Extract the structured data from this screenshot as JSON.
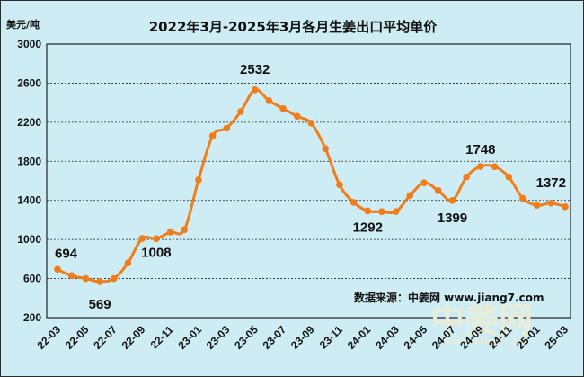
{
  "chart_data": {
    "type": "line",
    "title": "2022年3月-2025年3月各月生姜出口平均单价",
    "ylabel": "美元/吨",
    "ylim": [
      200,
      3000
    ],
    "yticks": [
      200,
      600,
      1000,
      1400,
      1800,
      2200,
      2600,
      3000
    ],
    "x": [
      "22-03",
      "22-04",
      "22-05",
      "22-06",
      "22-07",
      "22-08",
      "22-09",
      "22-10",
      "22-11",
      "22-12",
      "23-01",
      "23-02",
      "23-03",
      "23-04",
      "23-05",
      "23-06",
      "23-07",
      "23-08",
      "23-09",
      "23-10",
      "23-11",
      "23-12",
      "24-01",
      "24-02",
      "24-03",
      "24-04",
      "24-05",
      "24-06",
      "24-07",
      "24-08",
      "24-09",
      "24-10",
      "24-11",
      "24-12",
      "25-01",
      "25-02",
      "25-03"
    ],
    "xtick_labels": [
      "22-03",
      "22-05",
      "22-07",
      "22-09",
      "22-11",
      "23-01",
      "23-03",
      "23-05",
      "23-07",
      "23-09",
      "23-11",
      "24-01",
      "24-03",
      "24-05",
      "24-07",
      "24-09",
      "24-11",
      "25-01",
      "25-03"
    ],
    "series": [
      {
        "values": [
          694,
          630,
          600,
          569,
          600,
          760,
          1010,
          1008,
          1075,
          1100,
          1610,
          2060,
          2140,
          2310,
          2532,
          2420,
          2340,
          2260,
          2190,
          1930,
          1560,
          1380,
          1292,
          1285,
          1285,
          1450,
          1580,
          1500,
          1399,
          1640,
          1748,
          1745,
          1640,
          1420,
          1350,
          1372,
          1335
        ]
      }
    ],
    "data_labels": [
      {
        "index": 0,
        "text": "694"
      },
      {
        "index": 3,
        "text": "569"
      },
      {
        "index": 7,
        "text": "1008"
      },
      {
        "index": 14,
        "text": "2532"
      },
      {
        "index": 22,
        "text": "1292"
      },
      {
        "index": 28,
        "text": "1399"
      },
      {
        "index": 30,
        "text": "1748"
      },
      {
        "index": 35,
        "text": "1372"
      }
    ],
    "grid": true,
    "line_color": "#f07d1a",
    "source_note": "数据来源：中姜网 www.jiang7.com",
    "watermark": "中姜网",
    "watermark_url": "www.jiang7.com"
  }
}
